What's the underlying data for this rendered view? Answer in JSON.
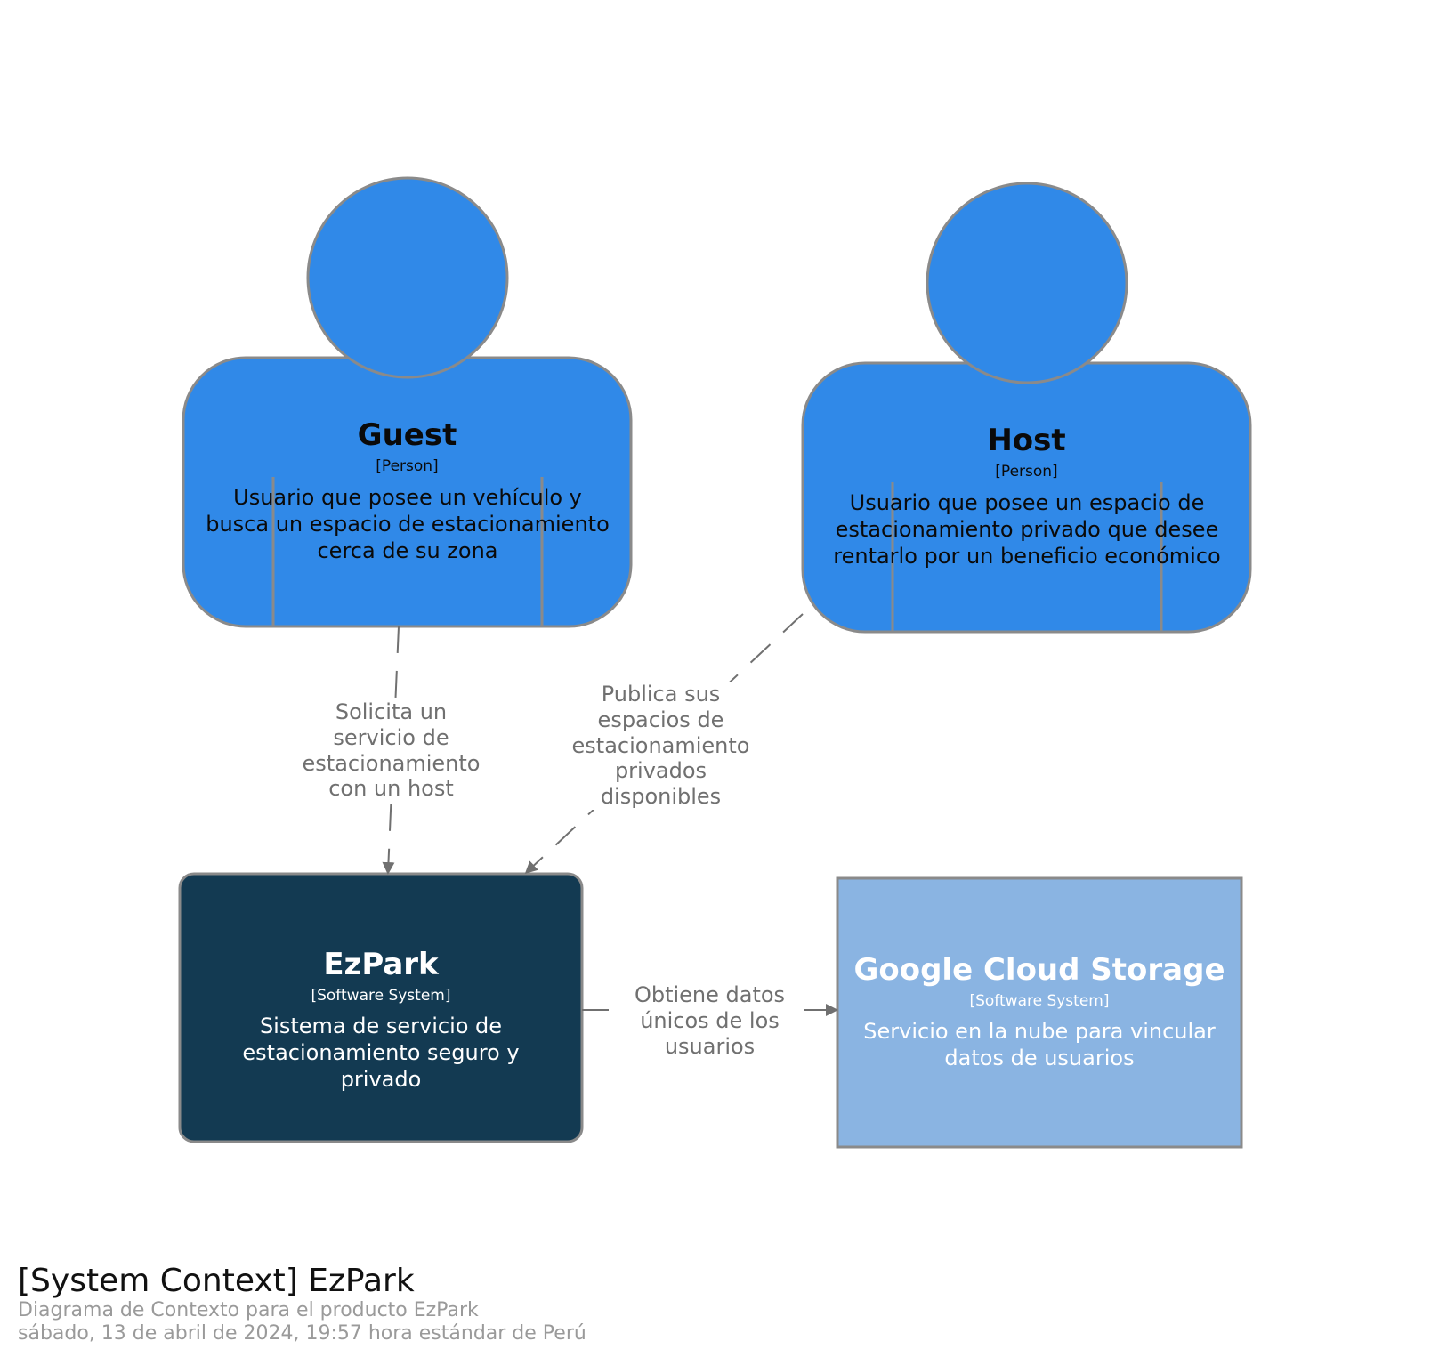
{
  "elements": {
    "guest": {
      "name": "Guest",
      "type": "[Person]",
      "description": "Usuario que posee un vehículo y busca un espacio de estacionamiento cerca de su zona"
    },
    "host": {
      "name": "Host",
      "type": "[Person]",
      "description": "Usuario que posee un espacio de estacionamiento privado que desee rentarlo por un beneficio económico"
    },
    "ezpark": {
      "name": "EzPark",
      "type": "[Software System]",
      "description": "Sistema de servicio de estacionamiento seguro y privado"
    },
    "gcs": {
      "name": "Google Cloud Storage",
      "type": "[Software System]",
      "description": "Servicio en la nube para vincular datos de usuarios"
    }
  },
  "relationships": {
    "guest_to_ezpark": "Solicita un servicio de estacionamiento con un host",
    "host_to_ezpark": "Publica sus espacios de estacionamiento privados disponibles",
    "ezpark_to_gcs": "Obtiene datos únicos de los usuarios"
  },
  "caption": {
    "title": "[System Context] EzPark",
    "subtitle": "Diagrama de Contexto para el producto EzPark",
    "timestamp": "sábado, 13 de abril de 2024, 19:57 hora estándar de Perú"
  },
  "colors": {
    "person": "#3089e8",
    "software_system": "#133a52",
    "external_system": "#8ab4e2",
    "border": "#8a8a8a",
    "arrow": "#707070"
  }
}
